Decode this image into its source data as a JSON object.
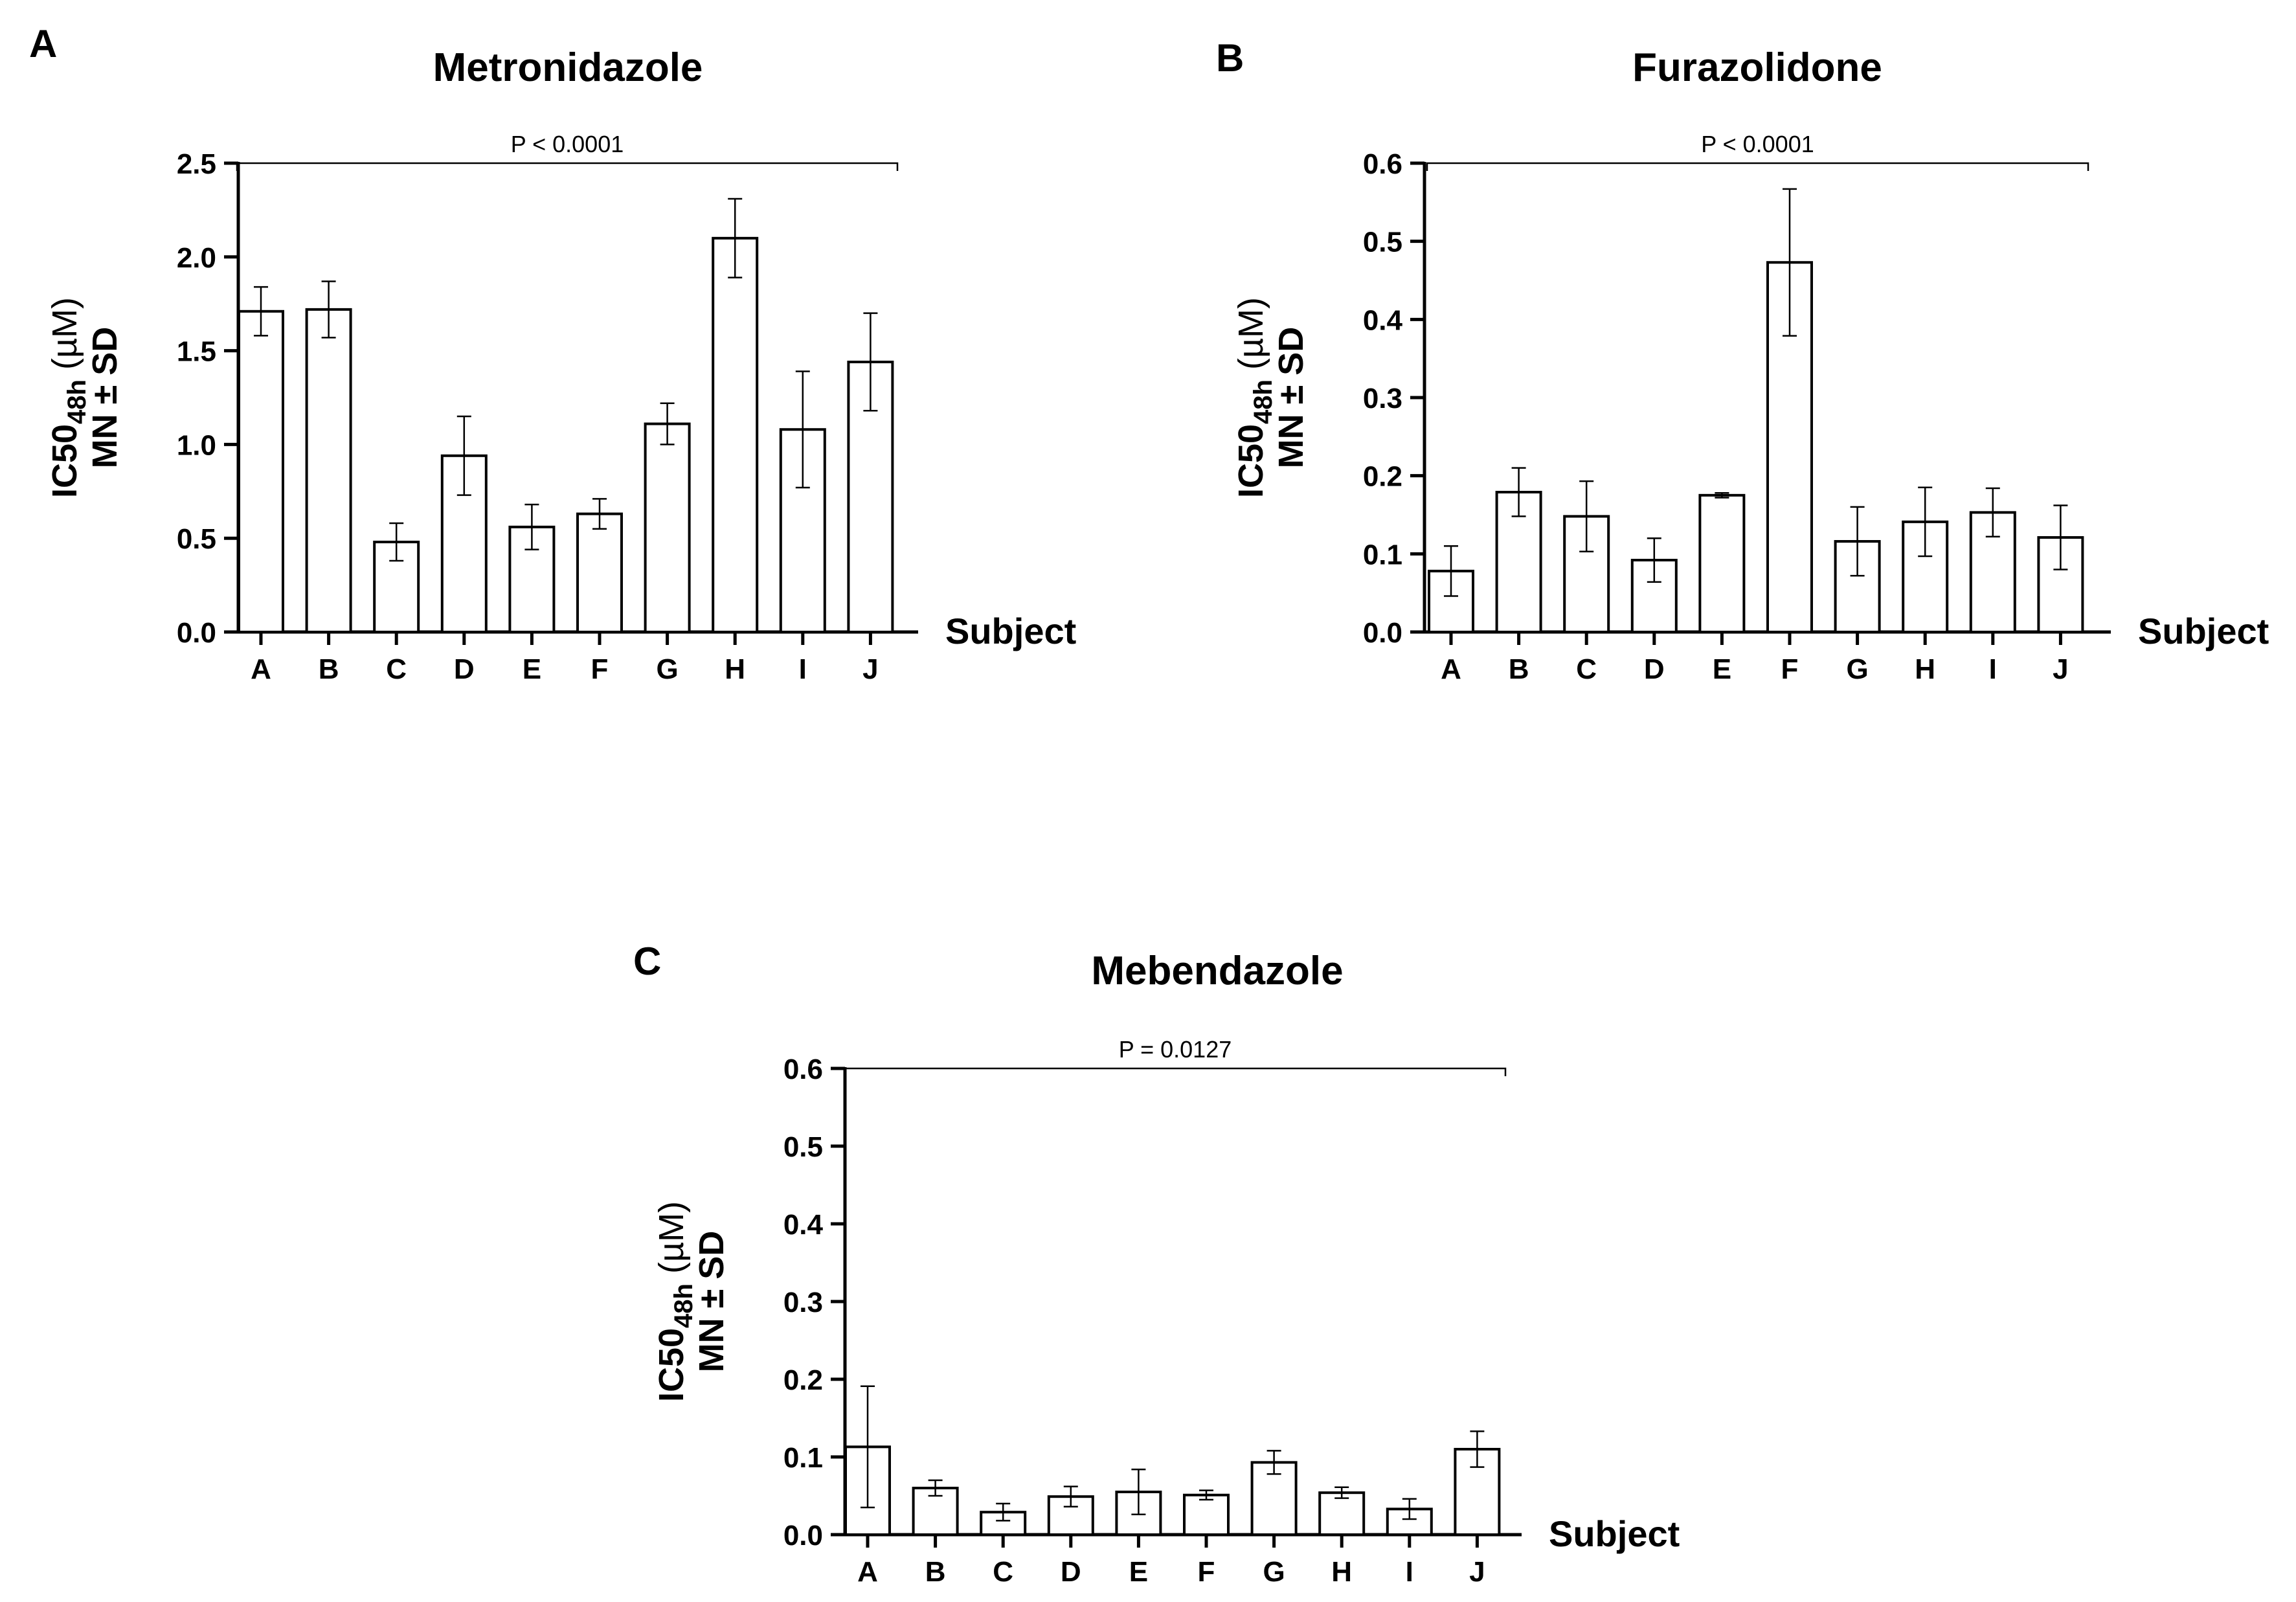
{
  "chart_data": [
    {
      "type": "bar",
      "panel_label": "A",
      "title": "Metronidazole",
      "ylabel": "IC50",
      "ylabel_sub": "48h",
      "ylabel_unit": "(µM)",
      "ylabel_line2": "MN ± SD",
      "xlabel": "Subject",
      "categories": [
        "A",
        "B",
        "C",
        "D",
        "E",
        "F",
        "G",
        "H",
        "I",
        "J"
      ],
      "values": [
        1.71,
        1.72,
        0.48,
        0.94,
        0.56,
        0.63,
        1.11,
        2.1,
        1.08,
        1.44
      ],
      "errors": [
        0.13,
        0.15,
        0.1,
        0.21,
        0.12,
        0.08,
        0.11,
        0.21,
        0.31,
        0.26
      ],
      "ylim": [
        0,
        2.5
      ],
      "yticks": [
        0,
        0.5,
        1.0,
        1.5,
        2.0,
        2.5
      ],
      "ytick_labels": [
        "0.0",
        "0.5",
        "1.0",
        "1.5",
        "2.0",
        "2.5"
      ],
      "significance": "P < 0.0001"
    },
    {
      "type": "bar",
      "panel_label": "B",
      "title": "Furazolidone",
      "ylabel": "IC50",
      "ylabel_sub": "48h",
      "ylabel_unit": "(µM)",
      "ylabel_line2": "MN ± SD",
      "xlabel": "Subject",
      "categories": [
        "A",
        "B",
        "C",
        "D",
        "E",
        "F",
        "G",
        "H",
        "I",
        "J"
      ],
      "values": [
        0.078,
        0.179,
        0.148,
        0.092,
        0.175,
        0.473,
        0.116,
        0.141,
        0.153,
        0.121
      ],
      "errors": [
        0.032,
        0.031,
        0.045,
        0.028,
        0.003,
        0.094,
        0.044,
        0.044,
        0.031,
        0.041
      ],
      "ylim": [
        0,
        0.6
      ],
      "yticks": [
        0,
        0.1,
        0.2,
        0.3,
        0.4,
        0.5,
        0.6
      ],
      "ytick_labels": [
        "0.0",
        "0.1",
        "0.2",
        "0.3",
        "0.4",
        "0.5",
        "0.6"
      ],
      "significance": "P < 0.0001"
    },
    {
      "type": "bar",
      "panel_label": "C",
      "title": "Mebendazole",
      "ylabel": "IC50",
      "ylabel_sub": "48h",
      "ylabel_unit": "(µM)",
      "ylabel_line2": "MN ± SD",
      "xlabel": "Subject",
      "categories": [
        "A",
        "B",
        "C",
        "D",
        "E",
        "F",
        "G",
        "H",
        "I",
        "J"
      ],
      "values": [
        0.113,
        0.06,
        0.029,
        0.049,
        0.055,
        0.051,
        0.093,
        0.054,
        0.033,
        0.11
      ],
      "errors": [
        0.078,
        0.01,
        0.011,
        0.013,
        0.029,
        0.006,
        0.015,
        0.007,
        0.013,
        0.023
      ],
      "ylim": [
        0,
        0.6
      ],
      "yticks": [
        0,
        0.1,
        0.2,
        0.3,
        0.4,
        0.5,
        0.6
      ],
      "ytick_labels": [
        "0.0",
        "0.1",
        "0.2",
        "0.3",
        "0.4",
        "0.5",
        "0.6"
      ],
      "significance": "P = 0.0127"
    }
  ]
}
